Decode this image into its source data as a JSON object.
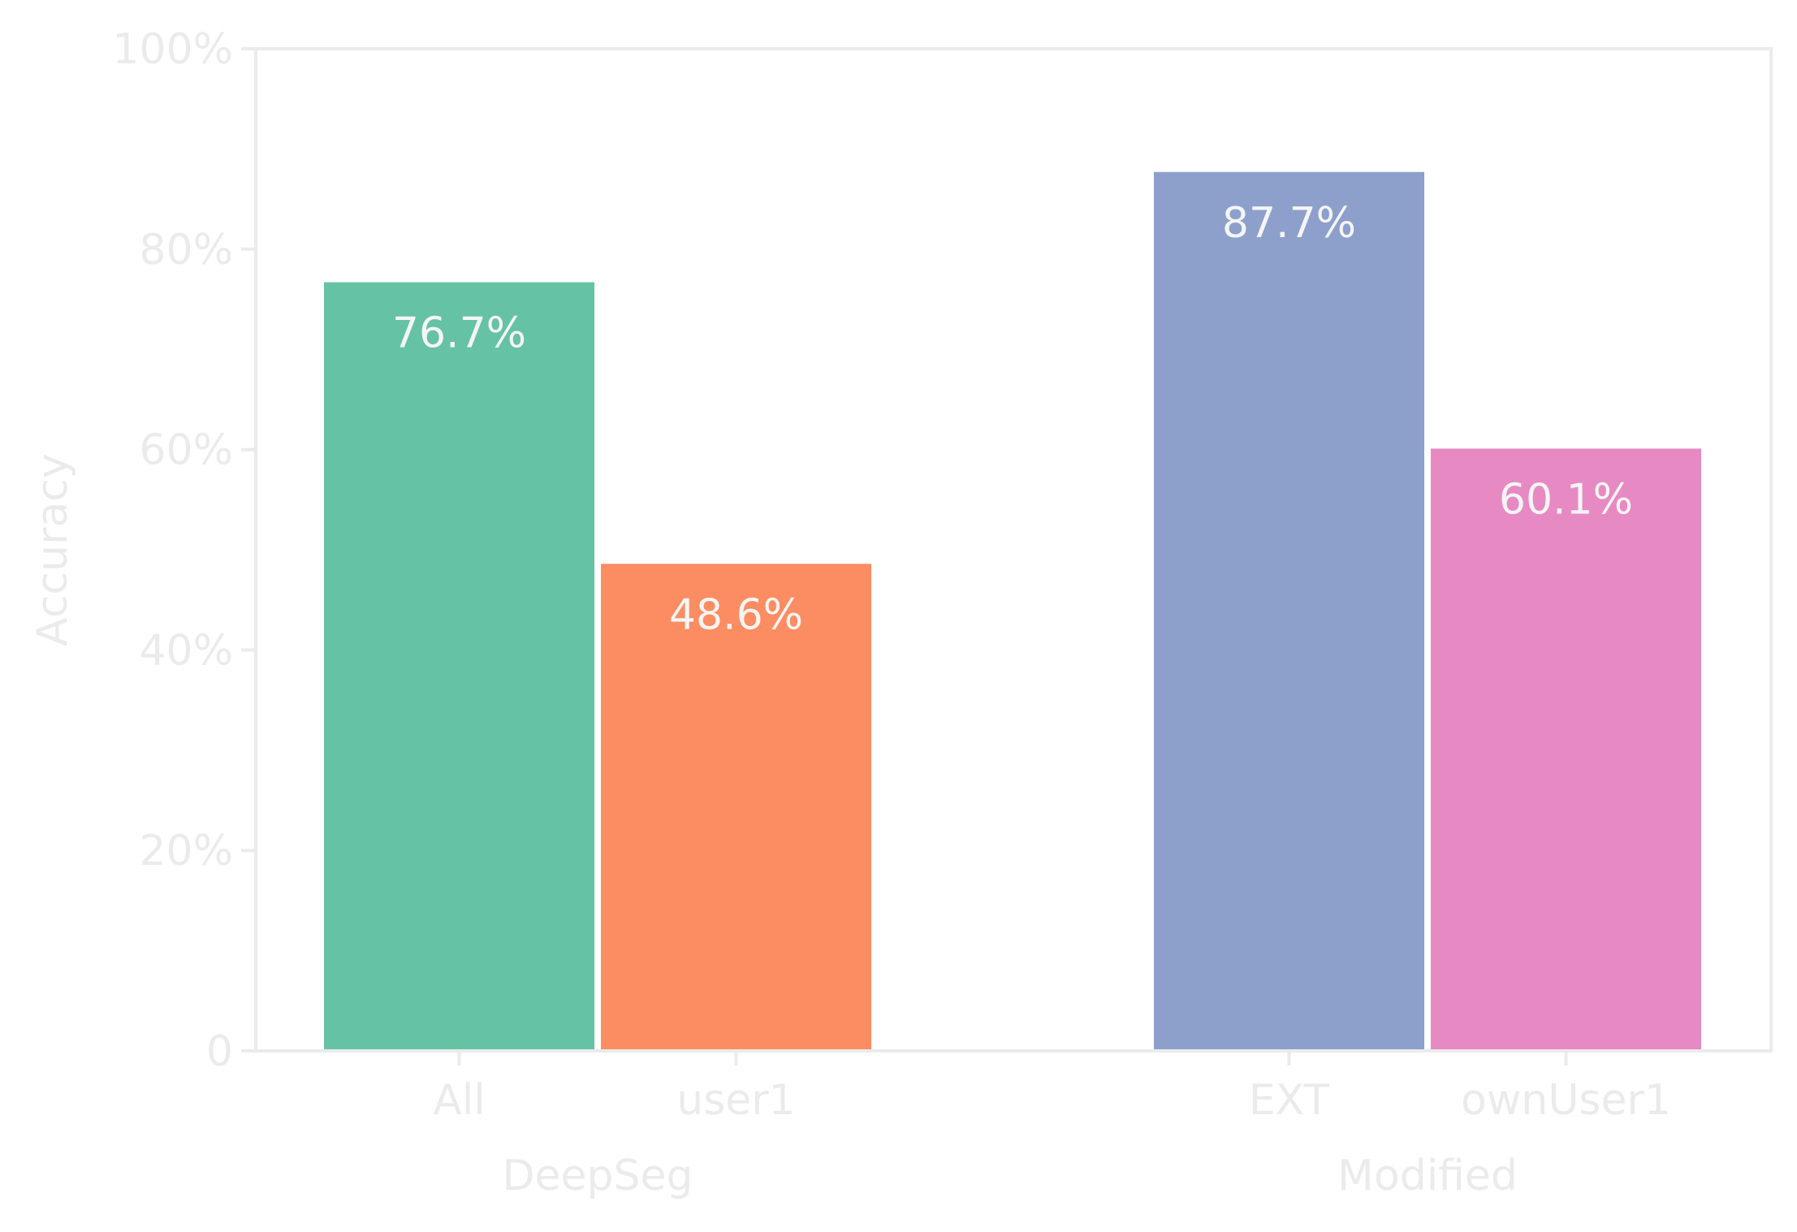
{
  "chart_data": {
    "type": "bar",
    "ylabel": "Accuracy",
    "ylim": [
      0,
      100
    ],
    "yticks": [
      {
        "value": 0,
        "label": "0"
      },
      {
        "value": 20,
        "label": "20%"
      },
      {
        "value": 40,
        "label": "40%"
      },
      {
        "value": 60,
        "label": "60%"
      },
      {
        "value": 80,
        "label": "80%"
      },
      {
        "value": 100,
        "label": "100%"
      }
    ],
    "groups": [
      {
        "name": "DeepSeg",
        "bars": [
          {
            "category": "All",
            "value": 76.7,
            "label": "76.7%",
            "color": "#66c2a5"
          },
          {
            "category": "user1",
            "value": 48.6,
            "label": "48.6%",
            "color": "#fc8d62"
          }
        ]
      },
      {
        "name": "Modified",
        "bars": [
          {
            "category": "EXT",
            "value": 87.7,
            "label": "87.7%",
            "color": "#8da0cb"
          },
          {
            "category": "ownUser1",
            "value": 60.1,
            "label": "60.1%",
            "color": "#e78ac3"
          }
        ]
      }
    ],
    "grid": false,
    "legend": "none"
  }
}
